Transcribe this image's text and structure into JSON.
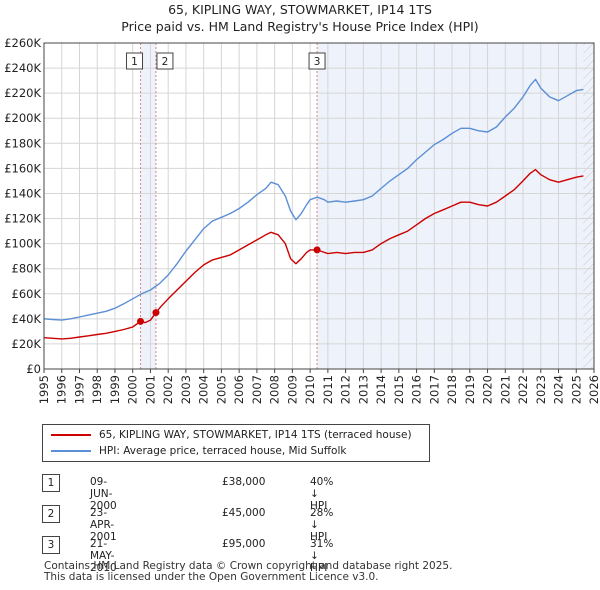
{
  "chart_data": {
    "type": "line",
    "title": "65, KIPLING WAY, STOWMARKET, IP14 1TS",
    "subtitle": "Price paid vs. HM Land Registry's House Price Index (HPI)",
    "xlim": [
      1995,
      2026
    ],
    "ylim": [
      0,
      260000
    ],
    "x_ticks": [
      "1995",
      "1996",
      "1997",
      "1998",
      "1999",
      "2000",
      "2001",
      "2002",
      "2003",
      "2004",
      "2005",
      "2006",
      "2007",
      "2008",
      "2009",
      "2010",
      "2011",
      "2012",
      "2013",
      "2014",
      "2015",
      "2016",
      "2017",
      "2018",
      "2019",
      "2020",
      "2021",
      "2022",
      "2023",
      "2024",
      "2025",
      "2026"
    ],
    "y_ticks": [
      {
        "v": 0,
        "label": "£0"
      },
      {
        "v": 20000,
        "label": "£20K"
      },
      {
        "v": 40000,
        "label": "£40K"
      },
      {
        "v": 60000,
        "label": "£60K"
      },
      {
        "v": 80000,
        "label": "£80K"
      },
      {
        "v": 100000,
        "label": "£100K"
      },
      {
        "v": 120000,
        "label": "£120K"
      },
      {
        "v": 140000,
        "label": "£140K"
      },
      {
        "v": 160000,
        "label": "£160K"
      },
      {
        "v": 180000,
        "label": "£180K"
      },
      {
        "v": 200000,
        "label": "£200K"
      },
      {
        "v": 220000,
        "label": "£220K"
      },
      {
        "v": 240000,
        "label": "£240K"
      },
      {
        "v": 260000,
        "label": "£260K"
      }
    ],
    "series": [
      {
        "name": "65, KIPLING WAY, STOWMARKET, IP14 1TS (terraced house)",
        "color": "#cc0000",
        "points": [
          [
            1995.0,
            25000
          ],
          [
            1995.5,
            24500
          ],
          [
            1996.0,
            24000
          ],
          [
            1996.5,
            24500
          ],
          [
            1997.0,
            25500
          ],
          [
            1997.5,
            26500
          ],
          [
            1998.0,
            27500
          ],
          [
            1998.5,
            28500
          ],
          [
            1999.0,
            30000
          ],
          [
            1999.5,
            31500
          ],
          [
            2000.0,
            33500
          ],
          [
            2000.44,
            38000
          ],
          [
            2000.7,
            37000
          ],
          [
            2001.0,
            39000
          ],
          [
            2001.31,
            45000
          ],
          [
            2001.6,
            50000
          ],
          [
            2002.0,
            56000
          ],
          [
            2002.5,
            63000
          ],
          [
            2003.0,
            70000
          ],
          [
            2003.5,
            77000
          ],
          [
            2004.0,
            83000
          ],
          [
            2004.5,
            87000
          ],
          [
            2005.0,
            89000
          ],
          [
            2005.5,
            91000
          ],
          [
            2006.0,
            95000
          ],
          [
            2006.5,
            99000
          ],
          [
            2007.0,
            103000
          ],
          [
            2007.5,
            107000
          ],
          [
            2007.8,
            109000
          ],
          [
            2008.2,
            107000
          ],
          [
            2008.6,
            100000
          ],
          [
            2008.9,
            88000
          ],
          [
            2009.2,
            84000
          ],
          [
            2009.5,
            88000
          ],
          [
            2009.8,
            93000
          ],
          [
            2010.0,
            95000
          ],
          [
            2010.39,
            95000
          ],
          [
            2010.8,
            93000
          ],
          [
            2011.0,
            92000
          ],
          [
            2011.5,
            93000
          ],
          [
            2012.0,
            92000
          ],
          [
            2012.5,
            93000
          ],
          [
            2013.0,
            93000
          ],
          [
            2013.5,
            95000
          ],
          [
            2014.0,
            100000
          ],
          [
            2014.5,
            104000
          ],
          [
            2015.0,
            107000
          ],
          [
            2015.5,
            110000
          ],
          [
            2016.0,
            115000
          ],
          [
            2016.5,
            120000
          ],
          [
            2017.0,
            124000
          ],
          [
            2017.5,
            127000
          ],
          [
            2018.0,
            130000
          ],
          [
            2018.5,
            133000
          ],
          [
            2019.0,
            133000
          ],
          [
            2019.5,
            131000
          ],
          [
            2020.0,
            130000
          ],
          [
            2020.5,
            133000
          ],
          [
            2021.0,
            138000
          ],
          [
            2021.5,
            143000
          ],
          [
            2022.0,
            150000
          ],
          [
            2022.4,
            156000
          ],
          [
            2022.7,
            159000
          ],
          [
            2023.0,
            155000
          ],
          [
            2023.5,
            151000
          ],
          [
            2024.0,
            149000
          ],
          [
            2024.5,
            151000
          ],
          [
            2025.0,
            153000
          ],
          [
            2025.4,
            154000
          ]
        ]
      },
      {
        "name": "HPI: Average price, terraced house, Mid Suffolk",
        "color": "#5b8fd6",
        "points": [
          [
            1995.0,
            40000
          ],
          [
            1995.5,
            39500
          ],
          [
            1996.0,
            39000
          ],
          [
            1996.5,
            40000
          ],
          [
            1997.0,
            41500
          ],
          [
            1997.5,
            43000
          ],
          [
            1998.0,
            44500
          ],
          [
            1998.5,
            46000
          ],
          [
            1999.0,
            48500
          ],
          [
            1999.5,
            52000
          ],
          [
            2000.0,
            56000
          ],
          [
            2000.5,
            60000
          ],
          [
            2001.0,
            63000
          ],
          [
            2001.5,
            68000
          ],
          [
            2002.0,
            75000
          ],
          [
            2002.5,
            84000
          ],
          [
            2003.0,
            94000
          ],
          [
            2003.5,
            103000
          ],
          [
            2004.0,
            112000
          ],
          [
            2004.5,
            118000
          ],
          [
            2005.0,
            121000
          ],
          [
            2005.5,
            124000
          ],
          [
            2006.0,
            128000
          ],
          [
            2006.5,
            133000
          ],
          [
            2007.0,
            139000
          ],
          [
            2007.5,
            144000
          ],
          [
            2007.8,
            149000
          ],
          [
            2008.2,
            147000
          ],
          [
            2008.6,
            138000
          ],
          [
            2008.9,
            126000
          ],
          [
            2009.2,
            119000
          ],
          [
            2009.5,
            124000
          ],
          [
            2009.8,
            131000
          ],
          [
            2010.0,
            135000
          ],
          [
            2010.4,
            137000
          ],
          [
            2010.8,
            135000
          ],
          [
            2011.0,
            133000
          ],
          [
            2011.5,
            134000
          ],
          [
            2012.0,
            133000
          ],
          [
            2012.5,
            134000
          ],
          [
            2013.0,
            135000
          ],
          [
            2013.5,
            138000
          ],
          [
            2014.0,
            144000
          ],
          [
            2014.5,
            150000
          ],
          [
            2015.0,
            155000
          ],
          [
            2015.5,
            160000
          ],
          [
            2016.0,
            167000
          ],
          [
            2016.5,
            173000
          ],
          [
            2017.0,
            179000
          ],
          [
            2017.5,
            183000
          ],
          [
            2018.0,
            188000
          ],
          [
            2018.5,
            192000
          ],
          [
            2019.0,
            192000
          ],
          [
            2019.5,
            190000
          ],
          [
            2020.0,
            189000
          ],
          [
            2020.5,
            193000
          ],
          [
            2021.0,
            201000
          ],
          [
            2021.5,
            208000
          ],
          [
            2022.0,
            217000
          ],
          [
            2022.4,
            226000
          ],
          [
            2022.7,
            231000
          ],
          [
            2023.0,
            224000
          ],
          [
            2023.5,
            217000
          ],
          [
            2024.0,
            214000
          ],
          [
            2024.5,
            218000
          ],
          [
            2025.0,
            222000
          ],
          [
            2025.4,
            223000
          ]
        ]
      }
    ],
    "sales": [
      {
        "id": "1",
        "x": 2000.44,
        "price": 38000
      },
      {
        "id": "2",
        "x": 2001.31,
        "price": 45000
      },
      {
        "id": "3",
        "x": 2010.39,
        "price": 95000
      }
    ],
    "shaded_regions": [
      [
        2000.44,
        2001.31
      ],
      [
        2010.39,
        2026.0
      ]
    ],
    "future_hatch_from": 2025.4,
    "legend_position": "below"
  },
  "legend": {
    "property_label": "65, KIPLING WAY, STOWMARKET, IP14 1TS (terraced house)",
    "hpi_label": "HPI: Average price, terraced house, Mid Suffolk",
    "property_color": "#cc0000",
    "hpi_color": "#5b8fd6"
  },
  "transactions": [
    {
      "id": "1",
      "date": "09-JUN-2000",
      "price": "£38,000",
      "hpi": "40% ↓ HPI"
    },
    {
      "id": "2",
      "date": "23-APR-2001",
      "price": "£45,000",
      "hpi": "28% ↓ HPI"
    },
    {
      "id": "3",
      "date": "21-MAY-2010",
      "price": "£95,000",
      "hpi": "31% ↓ HPI"
    }
  ],
  "footer": {
    "line1": "Contains HM Land Registry data © Crown copyright and database right 2025.",
    "line2": "This data is licensed under the Open Government Licence v3.0."
  }
}
